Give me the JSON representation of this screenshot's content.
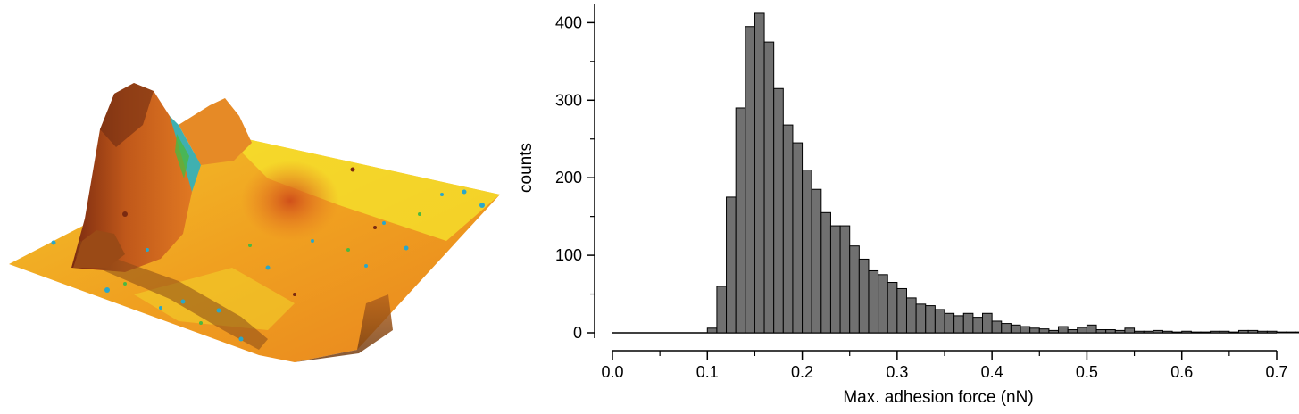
{
  "surface_image": {
    "type": "3d-surface-render",
    "colormap": [
      "#2aa7c9",
      "#4cb840",
      "#f4ee2a",
      "#f5a623",
      "#e0601c",
      "#7a2a10"
    ]
  },
  "chart_data": {
    "type": "bar",
    "subtype": "histogram",
    "title": "",
    "xlabel": "Max. adhesion force (nN)",
    "ylabel": "counts",
    "xlim": [
      0.0,
      0.7
    ],
    "ylim": [
      0,
      420
    ],
    "xticks": [
      "0.0",
      "0.1",
      "0.2",
      "0.3",
      "0.4",
      "0.5",
      "0.6",
      "0.7"
    ],
    "yticks": [
      "0",
      "100",
      "200",
      "300",
      "400"
    ],
    "bin_width": 0.01,
    "bin_start": 0.1,
    "values": [
      6,
      60,
      175,
      290,
      395,
      412,
      375,
      315,
      268,
      245,
      210,
      185,
      155,
      138,
      138,
      112,
      95,
      80,
      75,
      65,
      57,
      45,
      37,
      35,
      30,
      25,
      22,
      25,
      20,
      25,
      15,
      12,
      10,
      8,
      6,
      5,
      3,
      8,
      4,
      7,
      10,
      4,
      4,
      3,
      6,
      2,
      2,
      3,
      2,
      1,
      2,
      1,
      1,
      2,
      2,
      1,
      3,
      3,
      2,
      2,
      1,
      1,
      1,
      1,
      1,
      2,
      1,
      1,
      1,
      1
    ],
    "grid": false,
    "bar_color": "#707070"
  }
}
